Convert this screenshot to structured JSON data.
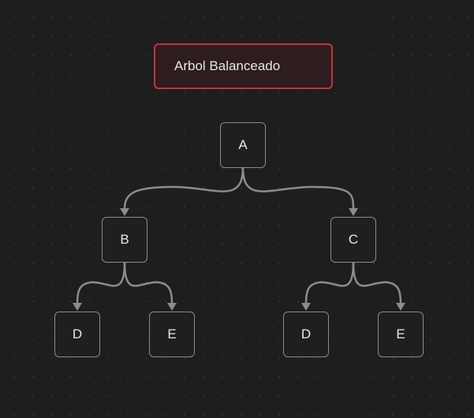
{
  "diagram": {
    "title": "Arbol Balanceado",
    "colors": {
      "background": "#1e1e1e",
      "title_border": "#c8323c",
      "title_fill": "#2d1d1e",
      "node_border": "#8a8a8a",
      "edge": "#8c8c8c",
      "text": "#e8e8e8"
    },
    "nodes": {
      "a": "A",
      "b": "B",
      "c": "C",
      "b_left": "D",
      "b_right": "E",
      "c_left": "D",
      "c_right": "E"
    },
    "edges": [
      [
        "A",
        "B"
      ],
      [
        "A",
        "C"
      ],
      [
        "B",
        "D"
      ],
      [
        "B",
        "E"
      ],
      [
        "C",
        "D"
      ],
      [
        "C",
        "E"
      ]
    ]
  }
}
